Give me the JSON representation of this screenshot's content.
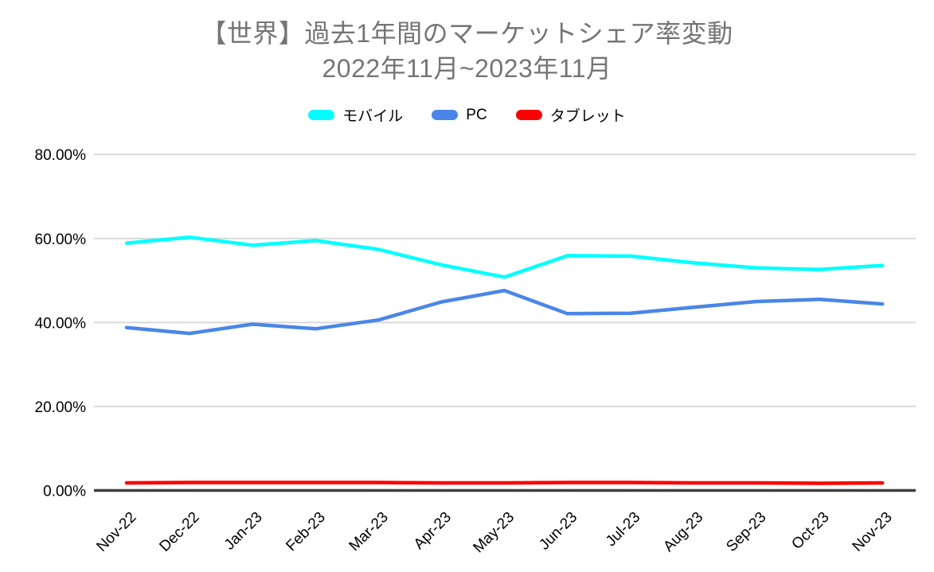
{
  "title": {
    "line1": "【世界】過去1年間のマーケットシェア率変動",
    "line2": "2022年11月~2023年11月"
  },
  "colors": {
    "mobile": "#00ffff",
    "pc": "#4a86e8",
    "tablet": "#ff0000",
    "title_text": "#757575",
    "grid": "#d9d9d9",
    "axis": "#3d3d3d",
    "tick_text": "#000000",
    "background": "#ffffff"
  },
  "chart_data": {
    "type": "line",
    "title": "【世界】過去1年間のマーケットシェア率変動 2022年11月~2023年11月",
    "xlabel": "",
    "ylabel": "",
    "x": [
      "Nov-22",
      "Dec-22",
      "Jan-23",
      "Feb-23",
      "Mar-23",
      "Apr-23",
      "May-23",
      "Jun-23",
      "Jul-23",
      "Aug-23",
      "Sep-23",
      "Oct-23",
      "Nov-23"
    ],
    "series": [
      {
        "id": "mobile",
        "name": "モバイル",
        "color": "#00ffff",
        "values": [
          58.9,
          60.3,
          58.4,
          59.5,
          57.4,
          53.7,
          50.8,
          55.9,
          55.8,
          54.2,
          53.0,
          52.6,
          53.6
        ]
      },
      {
        "id": "pc",
        "name": "PC",
        "color": "#4a86e8",
        "values": [
          38.8,
          37.4,
          39.6,
          38.5,
          40.6,
          44.9,
          47.6,
          42.1,
          42.2,
          43.6,
          45.0,
          45.5,
          44.4
        ]
      },
      {
        "id": "tablet",
        "name": "タブレット",
        "color": "#ff0000",
        "values": [
          1.8,
          1.9,
          1.9,
          1.9,
          1.9,
          1.8,
          1.8,
          1.9,
          1.9,
          1.8,
          1.8,
          1.7,
          1.8
        ]
      }
    ],
    "ylim": [
      0,
      80
    ],
    "y_ticks": [
      {
        "value": 0,
        "label": "0.00%"
      },
      {
        "value": 20,
        "label": "20.00%"
      },
      {
        "value": 40,
        "label": "40.00%"
      },
      {
        "value": 60,
        "label": "60.00%"
      },
      {
        "value": 80,
        "label": "80.00%"
      }
    ],
    "grid": true,
    "legend_position": "top",
    "x_label_rotation_deg": -45
  }
}
